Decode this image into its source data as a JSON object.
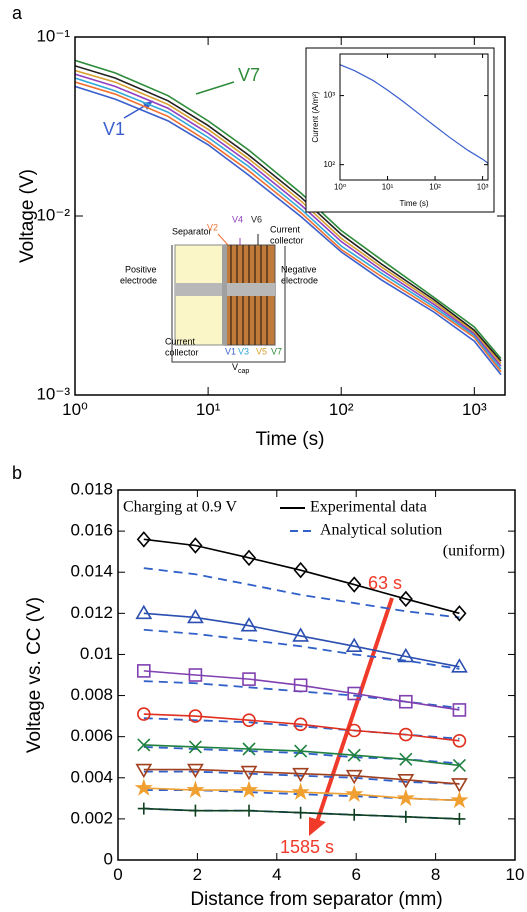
{
  "chart_data": [
    {
      "type": "line",
      "panel": "a",
      "xlabel": "Time (s)",
      "ylabel": "Voltage (V)",
      "xscale": "log",
      "yscale": "log",
      "x": [
        1,
        2,
        5,
        10,
        20,
        50,
        100,
        200,
        500,
        1000,
        1585
      ],
      "xlim": [
        1,
        1700
      ],
      "ylim": [
        0.001,
        0.1
      ],
      "xticks": [
        {
          "value": 1,
          "label": "10⁰"
        },
        {
          "value": 10,
          "label": "10¹"
        },
        {
          "value": 100,
          "label": "10²"
        },
        {
          "value": 1000,
          "label": "10³"
        }
      ],
      "yticks": [
        {
          "value": 0.001,
          "label": "10⁻³"
        },
        {
          "value": 0.01,
          "label": "10⁻²"
        },
        {
          "value": 0.1,
          "label": "10⁻¹"
        }
      ],
      "series": [
        {
          "name": "V1",
          "color": "#3a5fcd",
          "values": [
            0.053,
            0.045,
            0.034,
            0.025,
            0.017,
            0.0099,
            0.0063,
            0.0044,
            0.0029,
            0.002,
            0.0013
          ]
        },
        {
          "name": "V2",
          "color": "#f07030",
          "values": [
            0.056,
            0.048,
            0.036,
            0.026,
            0.018,
            0.0104,
            0.0065,
            0.0046,
            0.003,
            0.0021,
            0.00135
          ]
        },
        {
          "name": "V3",
          "color": "#30a8d8",
          "values": [
            0.059,
            0.05,
            0.038,
            0.0275,
            0.019,
            0.0109,
            0.0068,
            0.0048,
            0.0031,
            0.00215,
            0.0014
          ]
        },
        {
          "name": "V4",
          "color": "#9040c0",
          "values": [
            0.062,
            0.053,
            0.04,
            0.029,
            0.02,
            0.0115,
            0.0072,
            0.005,
            0.0032,
            0.0022,
            0.00145
          ]
        },
        {
          "name": "V5",
          "color": "#d8a030",
          "values": [
            0.065,
            0.056,
            0.042,
            0.0305,
            0.021,
            0.0121,
            0.0075,
            0.0052,
            0.0033,
            0.00225,
            0.0015
          ]
        },
        {
          "name": "V6",
          "color": "#222222",
          "values": [
            0.069,
            0.059,
            0.044,
            0.032,
            0.022,
            0.0127,
            0.0079,
            0.0054,
            0.0034,
            0.0023,
            0.00155
          ]
        },
        {
          "name": "V7",
          "color": "#2e8b3a",
          "values": [
            0.074,
            0.063,
            0.047,
            0.034,
            0.0235,
            0.0134,
            0.0083,
            0.0057,
            0.0035,
            0.0024,
            0.0016
          ]
        }
      ]
    },
    {
      "type": "line",
      "xlabel": "Time (s)",
      "ylabel": "Current (A/m²)",
      "xscale": "log",
      "yscale": "log",
      "x": [
        1,
        2,
        5,
        10,
        20,
        50,
        100,
        200,
        500,
        1000,
        1300
      ],
      "xlim": [
        1,
        1300
      ],
      "ylim": [
        60,
        4000
      ],
      "xticks": [
        {
          "value": 1,
          "label": "10⁰"
        },
        {
          "value": 10,
          "label": "10¹"
        },
        {
          "value": 100,
          "label": "10²"
        },
        {
          "value": 1000,
          "label": "10³"
        }
      ],
      "yticks": [
        {
          "value": 100,
          "label": "10²"
        },
        {
          "value": 1000,
          "label": "10³"
        }
      ],
      "series": [
        {
          "color": "#3a5fcd",
          "values": [
            2800,
            2300,
            1650,
            1200,
            850,
            520,
            360,
            250,
            160,
            120,
            105
          ]
        }
      ]
    },
    {
      "type": "line",
      "panel": "b",
      "xlabel": "Distance from separator (mm)",
      "ylabel": "Voltage vs. CC (V)",
      "x": [
        0.65,
        1.95,
        3.3,
        4.6,
        5.95,
        7.25,
        8.6
      ],
      "xlim": [
        0,
        10
      ],
      "ylim": [
        0,
        0.018
      ],
      "xticks": [
        0,
        2,
        4,
        6,
        8,
        10
      ],
      "yticks": [
        0,
        0.002,
        0.004,
        0.006,
        0.008,
        0.01,
        0.012,
        0.014,
        0.016,
        0.018
      ],
      "series": [
        {
          "marker": "diamond",
          "color": "#000000",
          "values": [
            0.0156,
            0.0153,
            0.0147,
            0.0141,
            0.0134,
            0.0127,
            0.012
          ]
        },
        {
          "marker": "triangle",
          "color": "#2b4fb0",
          "values": [
            0.012,
            0.0118,
            0.0114,
            0.0109,
            0.0104,
            0.0099,
            0.0094
          ]
        },
        {
          "marker": "square",
          "color": "#8040b0",
          "values": [
            0.0092,
            0.009,
            0.0088,
            0.0085,
            0.0081,
            0.0077,
            0.0073
          ]
        },
        {
          "marker": "circle",
          "color": "#e03020",
          "values": [
            0.0071,
            0.007,
            0.0068,
            0.0066,
            0.0063,
            0.0061,
            0.0058
          ]
        },
        {
          "marker": "x",
          "color": "#208040",
          "values": [
            0.0056,
            0.0055,
            0.0054,
            0.0053,
            0.0051,
            0.0049,
            0.0046
          ]
        },
        {
          "marker": "triangle-down",
          "color": "#a04020",
          "values": [
            0.0044,
            0.0044,
            0.0043,
            0.0042,
            0.0041,
            0.0039,
            0.0037
          ]
        },
        {
          "marker": "star",
          "color": "#f0a030",
          "values": [
            0.0035,
            0.0034,
            0.0034,
            0.0033,
            0.0032,
            0.003,
            0.0029
          ]
        },
        {
          "marker": "plus",
          "color": "#104020",
          "values": [
            0.0025,
            0.0024,
            0.0024,
            0.0023,
            0.0022,
            0.0021,
            0.002
          ]
        }
      ],
      "analytical": {
        "color": "#3060c8",
        "series": [
          [
            0.0142,
            0.0139,
            0.0134,
            0.0129,
            0.0125,
            0.0121,
            0.0118
          ],
          [
            0.0112,
            0.011,
            0.0107,
            0.0104,
            0.01,
            0.0097,
            0.0093
          ],
          [
            0.0087,
            0.0086,
            0.0084,
            0.0082,
            0.008,
            0.0077,
            0.0074
          ],
          [
            0.0069,
            0.0068,
            0.0067,
            0.0065,
            0.0063,
            0.0061,
            0.0059
          ],
          [
            0.0055,
            0.0054,
            0.0053,
            0.0052,
            0.005,
            0.0049,
            0.0047
          ],
          [
            0.0043,
            0.0043,
            0.0042,
            0.0041,
            0.004,
            0.0038,
            0.0037
          ],
          [
            0.0034,
            0.0034,
            0.0033,
            0.0032,
            0.0031,
            0.003,
            0.0029
          ],
          [
            0.0025,
            0.0024,
            0.0024,
            0.0023,
            0.0022,
            0.0021,
            0.002
          ]
        ]
      },
      "legend": [
        {
          "name": "Experimental data",
          "color": "#000000",
          "dash": false
        },
        {
          "name": "Analytical solution",
          "name_line2": "(uniform)",
          "color": "#3060c8",
          "dash": true
        }
      ],
      "annotations": {
        "condition": "Charging at 0.9 V",
        "start": "63 s",
        "end": "1585 s"
      }
    }
  ],
  "schematic": {
    "separator": "Separator",
    "positive": [
      "Positive",
      "electrode"
    ],
    "negative": [
      "Negative",
      "electrode"
    ],
    "collector_top": [
      "Current",
      "collector"
    ],
    "collector_bottom": [
      "Current",
      "collector"
    ],
    "vcap": "V",
    "vcap_sub": "cap"
  }
}
